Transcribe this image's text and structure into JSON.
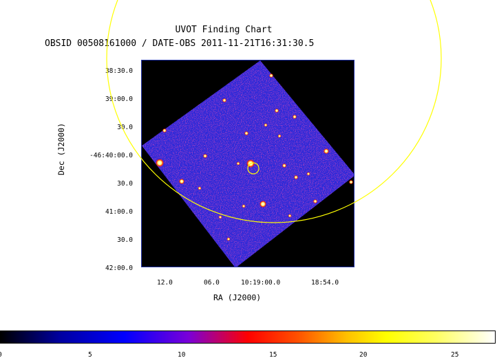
{
  "title": "UVOT Finding Chart",
  "subtitle": "OBSID 00508161000 / DATE-OBS 2011-11-21T16:31:30.5",
  "axes": {
    "xlabel": "RA (J2000)",
    "ylabel": "Dec (J2000)",
    "dec_ticks": [
      "38:30.0",
      "39:00.0",
      "30.0",
      "-46:40:00.0",
      "30.0",
      "41:00.0",
      "30.0",
      "42:00.0"
    ],
    "ra_ticks": [
      "12.0",
      "06.0",
      "10:19:00.0",
      "18:54.0"
    ]
  },
  "colorbar": {
    "ticks": [
      "0",
      "5",
      "10",
      "15",
      "20",
      "25"
    ]
  },
  "colors": {
    "background_sky": "#2a2ad8",
    "circle": "#ffff00",
    "frame": "#2233aa"
  }
}
